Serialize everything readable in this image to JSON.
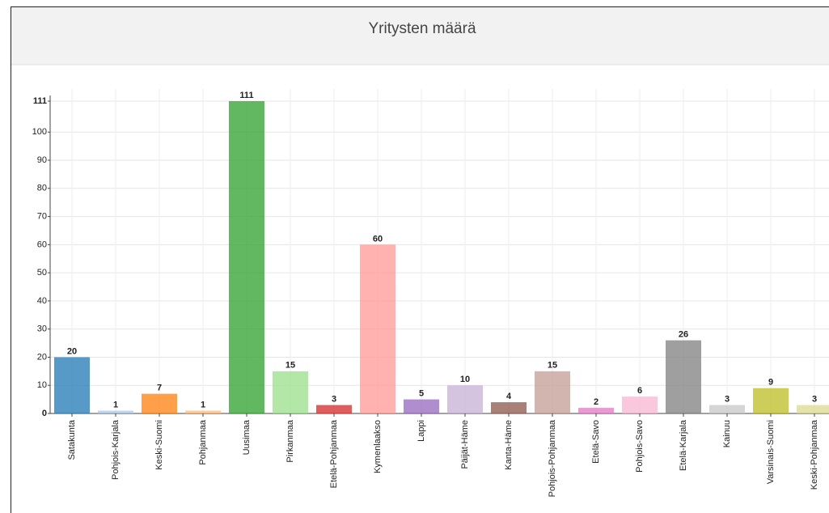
{
  "chart_data": {
    "type": "bar",
    "title": "Yritysten määrä",
    "categories": [
      "Satakunta",
      "Pohjois-Karjala",
      "Keski-Suomi",
      "Pohjanmaa",
      "Uusimaa",
      "Pirkanmaa",
      "Etelä-Pohjanmaa",
      "Kymenlaakso",
      "Lappi",
      "Päijät-Häme",
      "Kanta-Häme",
      "Pohjois-Pohjanmaa",
      "Etelä-Savo",
      "Pohjois-Savo",
      "Etelä-Karjala",
      "Kainuu",
      "Varsinais-Suomi",
      "Keski-Pohjanmaa"
    ],
    "values": [
      20,
      1,
      7,
      1,
      111,
      15,
      3,
      60,
      5,
      10,
      4,
      15,
      2,
      6,
      26,
      3,
      9,
      3
    ],
    "colors": [
      "#1f77b4",
      "#aec7e8",
      "#ff7f0e",
      "#ffbb78",
      "#2ca02c",
      "#98df8a",
      "#d62728",
      "#ff9896",
      "#9467bd",
      "#c5b0d5",
      "#8c564b",
      "#c49c94",
      "#e377c2",
      "#f7b6d2",
      "#7f7f7f",
      "#c7c7c7",
      "#bcbd22",
      "#dbdb8d"
    ],
    "ylim": [
      0,
      111
    ],
    "yticks": [
      0,
      10,
      20,
      30,
      40,
      50,
      60,
      70,
      80,
      90,
      100,
      111
    ],
    "grid": true
  }
}
